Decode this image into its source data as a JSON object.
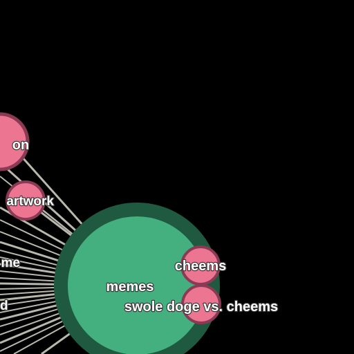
{
  "graph": {
    "nodes": {
      "hub": {
        "label": "memes"
      },
      "cheems": {
        "label": "cheems"
      },
      "swole": {
        "label": "swole doge vs. cheems"
      },
      "partial_top": {
        "label": "on"
      },
      "partial_artwork": {
        "label": "artwork"
      },
      "partial_me": {
        "label": "me"
      },
      "partial_d": {
        "label": "d"
      }
    },
    "colors": {
      "background": "#000000",
      "hub_fill": "#45b07f",
      "hub_stroke": "#1f5a40",
      "leaf_fill": "#ec7591",
      "leaf_stroke": "#8a3a55",
      "link": "#b8b8ad"
    }
  }
}
